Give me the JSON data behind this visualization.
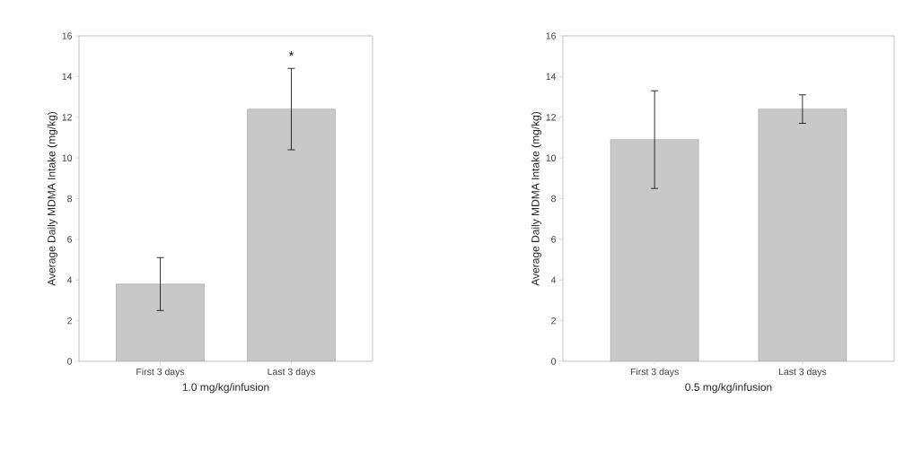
{
  "chart_data": [
    {
      "type": "bar",
      "xlabel": "1.0 mg/kg/infusion",
      "ylabel": "Average Daily MDMA Intake (mg/kg)",
      "categories": [
        "First 3 days",
        "Last 3 days"
      ],
      "values": [
        3.8,
        12.4
      ],
      "errors": [
        1.3,
        2.0
      ],
      "color": "#c8c8c8",
      "ylim": [
        0,
        16
      ],
      "yticks": [
        0,
        2,
        4,
        6,
        8,
        10,
        12,
        14,
        16
      ],
      "annotations": [
        "*"
      ]
    },
    {
      "type": "bar",
      "xlabel": "0.5 mg/kg/infusion",
      "ylabel": "Average Daily MDMA Intake (mg/kg)",
      "categories": [
        "First 3 days",
        "Last 3 days"
      ],
      "values": [
        10.9,
        12.4
      ],
      "errors": [
        2.4,
        0.7
      ],
      "color": "#c8c8c8",
      "ylim": [
        0,
        16
      ],
      "yticks": [
        0,
        2,
        4,
        6,
        8,
        10,
        12,
        14,
        16
      ]
    }
  ]
}
